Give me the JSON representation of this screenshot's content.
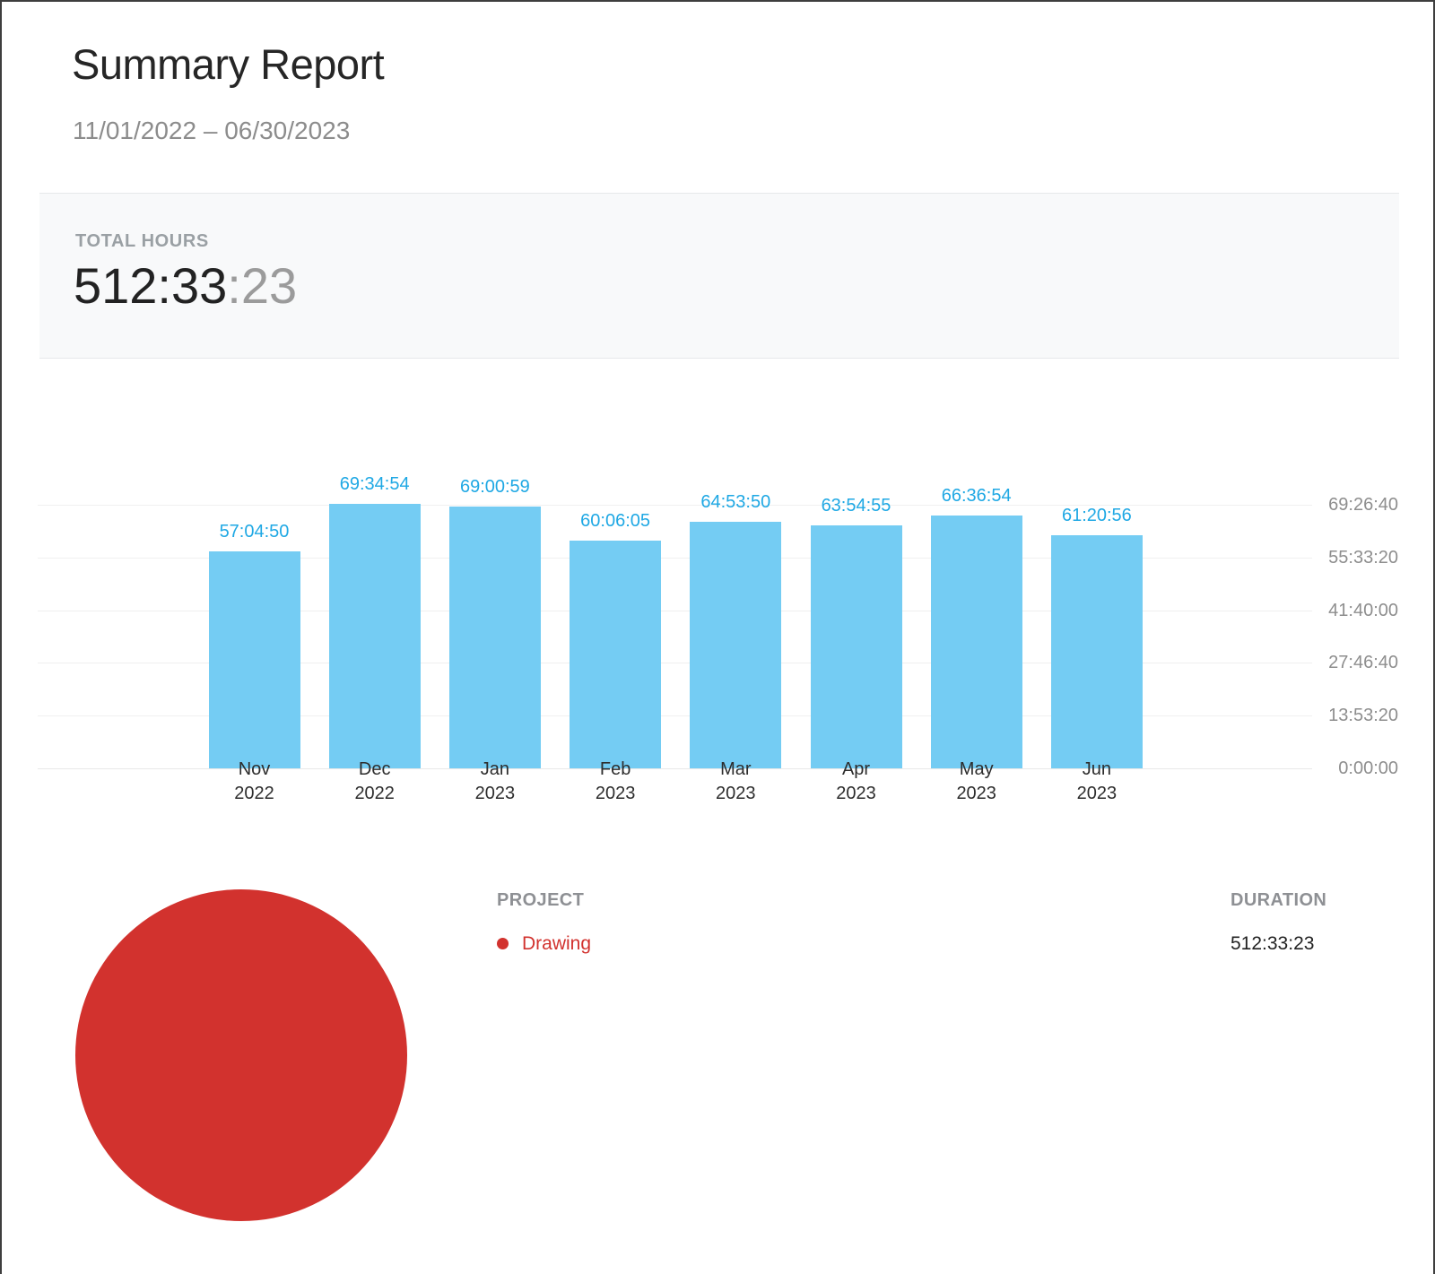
{
  "header": {
    "title": "Summary Report",
    "date_range": "11/01/2022 – 06/30/2023"
  },
  "totals": {
    "label": "TOTAL HOURS",
    "hours_main": "512:33",
    "hours_seconds": ":23",
    "full_value": "512:33:23"
  },
  "chart_data": [
    {
      "type": "bar",
      "categories": [
        {
          "month": "Nov",
          "year": "2022"
        },
        {
          "month": "Dec",
          "year": "2022"
        },
        {
          "month": "Jan",
          "year": "2023"
        },
        {
          "month": "Feb",
          "year": "2023"
        },
        {
          "month": "Mar",
          "year": "2023"
        },
        {
          "month": "Apr",
          "year": "2023"
        },
        {
          "month": "May",
          "year": "2023"
        },
        {
          "month": "Jun",
          "year": "2023"
        }
      ],
      "values": [
        "57:04:50",
        "69:34:54",
        "69:00:59",
        "60:06:05",
        "64:53:50",
        "63:54:55",
        "66:36:54",
        "61:20:56"
      ],
      "value_unit": "duration-hh:mm:ss",
      "y_tick_labels": [
        "0:00:00",
        "13:53:20",
        "27:46:40",
        "41:40:00",
        "55:33:20",
        "69:26:40"
      ],
      "y_axis_max_seconds": 250000,
      "y_axis_position": "right",
      "grid": true,
      "bar_color": "#74CCF3",
      "value_label_color": "#1FA8E4",
      "xlabel": "",
      "ylabel": ""
    },
    {
      "type": "pie",
      "slices": [
        {
          "label": "Drawing",
          "value": "512:33:23",
          "percent": 100,
          "color": "#D2322E"
        }
      ],
      "legend_position": "right"
    }
  ],
  "table": {
    "headers": {
      "project": "PROJECT",
      "duration": "DURATION"
    },
    "rows": [
      {
        "project": "Drawing",
        "duration": "512:33:23",
        "color": "#D2322E"
      }
    ]
  }
}
